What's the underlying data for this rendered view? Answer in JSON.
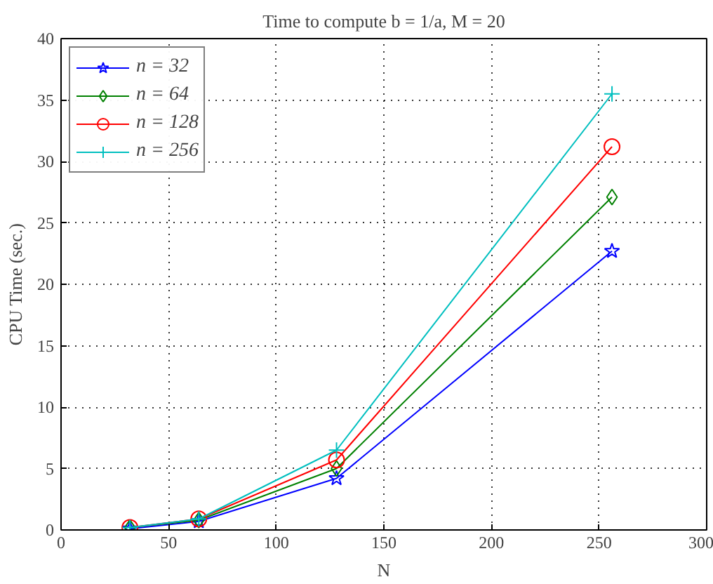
{
  "chart_data": {
    "type": "line",
    "title": "Time to compute b = 1/a, M = 20",
    "xlabel": "N",
    "ylabel": "CPU Time (sec.)",
    "x": [
      32,
      64,
      128,
      256
    ],
    "series": [
      {
        "name": "n = 32",
        "color": "#0000ff",
        "marker": "star",
        "values": [
          0.1,
          0.7,
          4.2,
          22.7
        ]
      },
      {
        "name": "n = 64",
        "color": "#008000",
        "marker": "diamond",
        "values": [
          0.2,
          0.8,
          5.0,
          27.1
        ]
      },
      {
        "name": "n = 128",
        "color": "#ff0000",
        "marker": "circle",
        "values": [
          0.2,
          0.9,
          5.7,
          31.2
        ]
      },
      {
        "name": "n = 256",
        "color": "#00bfbf",
        "marker": "cross",
        "values": [
          0.2,
          0.9,
          6.5,
          35.5
        ]
      }
    ],
    "xlim": [
      0,
      300
    ],
    "ylim": [
      0,
      40
    ],
    "xticks": [
      0,
      50,
      100,
      150,
      200,
      250,
      300
    ],
    "yticks": [
      0,
      5,
      10,
      15,
      20,
      25,
      30,
      35,
      40
    ],
    "grid": true,
    "legend": "top left",
    "line_style": "solid"
  }
}
